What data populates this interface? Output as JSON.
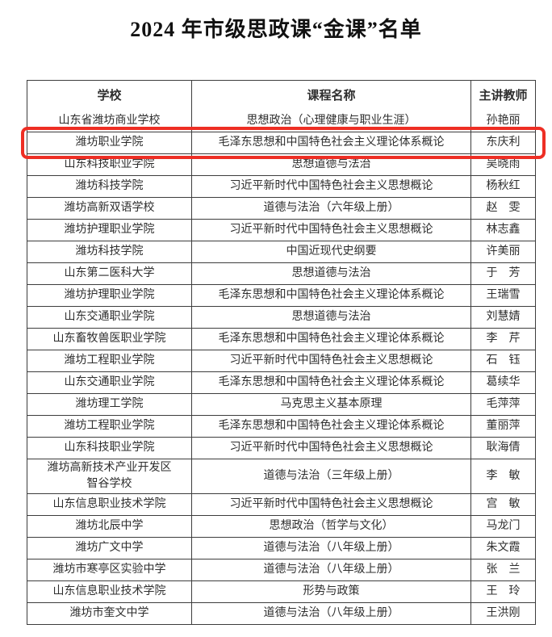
{
  "page": {
    "title": "2024 年市级思政课“金课”名单"
  },
  "colors": {
    "highlight_border": "#ee2e24",
    "table_border": "#3d3d3d",
    "text": "#2e2e2e"
  },
  "table": {
    "headers": [
      "学校",
      "课程名称",
      "主讲教师"
    ],
    "highlight_row_index": 1,
    "rows": [
      {
        "school": "山东省潍坊商业学校",
        "course": "思想政治（心理健康与职业生涯）",
        "teacher": "孙艳丽"
      },
      {
        "school": "潍坊职业学院",
        "course": "毛泽东思想和中国特色社会主义理论体系概论",
        "teacher": "东庆利"
      },
      {
        "school": "山东科技职业学院",
        "course": "思想道德与法治",
        "teacher": "吴晓雨"
      },
      {
        "school": "潍坊科技学院",
        "course": "习近平新时代中国特色社会主义思想概论",
        "teacher": "杨秋红"
      },
      {
        "school": "潍坊高新双语学校",
        "course": "道德与法治（六年级上册）",
        "teacher": "赵　雯"
      },
      {
        "school": "潍坊护理职业学院",
        "course": "习近平新时代中国特色社会主义思想概论",
        "teacher": "林志鑫"
      },
      {
        "school": "潍坊科技学院",
        "course": "中国近现代史纲要",
        "teacher": "许美丽"
      },
      {
        "school": "山东第二医科大学",
        "course": "思想道德与法治",
        "teacher": "于　芳"
      },
      {
        "school": "潍坊护理职业学院",
        "course": "毛泽东思想和中国特色社会主义理论体系概论",
        "teacher": "王瑞雪"
      },
      {
        "school": "山东交通职业学院",
        "course": "思想道德与法治",
        "teacher": "刘慧婧"
      },
      {
        "school": "山东畜牧兽医职业学院",
        "course": "毛泽东思想和中国特色社会主义理论体系概论",
        "teacher": "李　芹"
      },
      {
        "school": "潍坊工程职业学院",
        "course": "习近平新时代中国特色社会主义思想概论",
        "teacher": "石　钰"
      },
      {
        "school": "山东交通职业学院",
        "course": "毛泽东思想和中国特色社会主义理论体系概论",
        "teacher": "葛续华"
      },
      {
        "school": "潍坊理工学院",
        "course": "马克思主义基本原理",
        "teacher": "毛萍萍"
      },
      {
        "school": "潍坊工程职业学院",
        "course": "毛泽东思想和中国特色社会主义理论体系概论",
        "teacher": "董丽萍"
      },
      {
        "school": "山东科技职业学院",
        "course": "习近平新时代中国特色社会主义思想概论",
        "teacher": "耿海倩"
      },
      {
        "school": "潍坊高新技术产业开发区\n智谷学校",
        "course": "道德与法治（三年级上册）",
        "teacher": "李　敏"
      },
      {
        "school": "山东信息职业技术学院",
        "course": "习近平新时代中国特色社会主义思想概论",
        "teacher": "宫　敏"
      },
      {
        "school": "潍坊北辰中学",
        "course": "思想政治（哲学与文化）",
        "teacher": "马龙门"
      },
      {
        "school": "潍坊广文中学",
        "course": "道德与法治（八年级上册）",
        "teacher": "朱文霞"
      },
      {
        "school": "潍坊市寒亭区实验中学",
        "course": "道德与法治（八年级上册）",
        "teacher": "张　兰"
      },
      {
        "school": "山东信息职业技术学院",
        "course": "形势与政策",
        "teacher": "王　玲"
      },
      {
        "school": "潍坊市奎文中学",
        "course": "道德与法治（八年级上册）",
        "teacher": "王洪刚"
      }
    ]
  }
}
